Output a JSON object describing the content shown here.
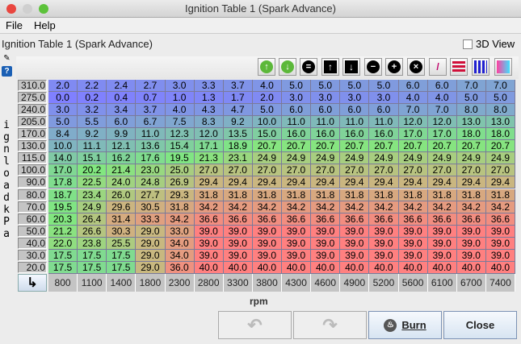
{
  "window": {
    "title": "Ignition Table 1 (Spark Advance)"
  },
  "menu": {
    "file": "File",
    "help": "Help"
  },
  "header": {
    "title": "Ignition Table 1 (Spark Advance)",
    "view3d_label": "3D View",
    "view3d_checked": false
  },
  "toolbar": {
    "icons": [
      "increment-green-up-icon",
      "decrement-green-down-icon",
      "set-equal-icon",
      "shift-up-icon",
      "shift-down-icon",
      "minus-icon",
      "plus-icon",
      "multiply-icon",
      "interpolate-icon",
      "horizontal-interpolate-icon",
      "vertical-interpolate-icon",
      "color-gradient-icon"
    ]
  },
  "table": {
    "y_axis_label": "ignload kPa",
    "x_axis_label": "rpm",
    "rows": [
      "310.0",
      "275.0",
      "240.0",
      "205.0",
      "170.0",
      "130.0",
      "115.0",
      "100.0",
      "90.0",
      "80.0",
      "70.0",
      "60.0",
      "50.0",
      "40.0",
      "30.0",
      "20.0"
    ],
    "cols": [
      "800",
      "1100",
      "1400",
      "1800",
      "2300",
      "2800",
      "3300",
      "3800",
      "4300",
      "4600",
      "4900",
      "5200",
      "5600",
      "6100",
      "6700",
      "7400"
    ],
    "values": [
      [
        "2.0",
        "2.2",
        "2.4",
        "2.7",
        "3.0",
        "3.3",
        "3.7",
        "4.0",
        "5.0",
        "5.0",
        "5.0",
        "5.0",
        "6.0",
        "6.0",
        "7.0",
        "7.0"
      ],
      [
        "0.0",
        "0.2",
        "0.4",
        "0.7",
        "1.0",
        "1.3",
        "1.7",
        "2.0",
        "3.0",
        "3.0",
        "3.0",
        "3.0",
        "4.0",
        "4.0",
        "5.0",
        "5.0"
      ],
      [
        "3.0",
        "3.2",
        "3.4",
        "3.7",
        "4.0",
        "4.3",
        "4.7",
        "5.0",
        "6.0",
        "6.0",
        "6.0",
        "6.0",
        "7.0",
        "7.0",
        "8.0",
        "8.0"
      ],
      [
        "5.0",
        "5.5",
        "6.0",
        "6.7",
        "7.5",
        "8.3",
        "9.2",
        "10.0",
        "11.0",
        "11.0",
        "11.0",
        "11.0",
        "12.0",
        "12.0",
        "13.0",
        "13.0"
      ],
      [
        "8.4",
        "9.2",
        "9.9",
        "11.0",
        "12.3",
        "12.0",
        "13.5",
        "15.0",
        "16.0",
        "16.0",
        "16.0",
        "16.0",
        "17.0",
        "17.0",
        "18.0",
        "18.0"
      ],
      [
        "10.0",
        "11.1",
        "12.1",
        "13.6",
        "15.4",
        "17.1",
        "18.9",
        "20.7",
        "20.7",
        "20.7",
        "20.7",
        "20.7",
        "20.7",
        "20.7",
        "20.7",
        "20.7"
      ],
      [
        "14.0",
        "15.1",
        "16.2",
        "17.6",
        "19.5",
        "21.3",
        "23.1",
        "24.9",
        "24.9",
        "24.9",
        "24.9",
        "24.9",
        "24.9",
        "24.9",
        "24.9",
        "24.9"
      ],
      [
        "17.0",
        "20.2",
        "21.4",
        "23.0",
        "25.0",
        "27.0",
        "27.0",
        "27.0",
        "27.0",
        "27.0",
        "27.0",
        "27.0",
        "27.0",
        "27.0",
        "27.0",
        "27.0"
      ],
      [
        "17.8",
        "22.5",
        "24.0",
        "24.8",
        "26.9",
        "29.4",
        "29.4",
        "29.4",
        "29.4",
        "29.4",
        "29.4",
        "29.4",
        "29.4",
        "29.4",
        "29.4",
        "29.4"
      ],
      [
        "18.7",
        "23.4",
        "26.0",
        "27.7",
        "29.3",
        "31.8",
        "31.8",
        "31.8",
        "31.8",
        "31.8",
        "31.8",
        "31.8",
        "31.8",
        "31.8",
        "31.8",
        "31.8"
      ],
      [
        "19.5",
        "24.9",
        "29.6",
        "30.5",
        "31.8",
        "34.2",
        "34.2",
        "34.2",
        "34.2",
        "34.2",
        "34.2",
        "34.2",
        "34.2",
        "34.2",
        "34.2",
        "34.2"
      ],
      [
        "20.3",
        "26.4",
        "31.4",
        "33.3",
        "34.2",
        "36.6",
        "36.6",
        "36.6",
        "36.6",
        "36.6",
        "36.6",
        "36.6",
        "36.6",
        "36.6",
        "36.6",
        "36.6"
      ],
      [
        "21.2",
        "26.6",
        "30.3",
        "29.0",
        "33.0",
        "39.0",
        "39.0",
        "39.0",
        "39.0",
        "39.0",
        "39.0",
        "39.0",
        "39.0",
        "39.0",
        "39.0",
        "39.0"
      ],
      [
        "22.0",
        "23.8",
        "25.5",
        "29.0",
        "34.0",
        "39.0",
        "39.0",
        "39.0",
        "39.0",
        "39.0",
        "39.0",
        "39.0",
        "39.0",
        "39.0",
        "39.0",
        "39.0"
      ],
      [
        "17.5",
        "17.5",
        "17.5",
        "29.0",
        "34.0",
        "39.0",
        "39.0",
        "39.0",
        "39.0",
        "39.0",
        "39.0",
        "39.0",
        "39.0",
        "39.0",
        "39.0",
        "39.0"
      ],
      [
        "17.5",
        "17.5",
        "17.5",
        "29.0",
        "36.0",
        "40.0",
        "40.0",
        "40.0",
        "40.0",
        "40.0",
        "40.0",
        "40.0",
        "40.0",
        "40.0",
        "40.0",
        "40.0"
      ]
    ]
  },
  "buttons": {
    "undo": "undo",
    "redo": "redo",
    "burn": "Burn",
    "close": "Close"
  },
  "colors": {
    "low": "#8080ff",
    "mid": "#80e880",
    "warm": "#c8b880",
    "high": "#ff8080"
  }
}
